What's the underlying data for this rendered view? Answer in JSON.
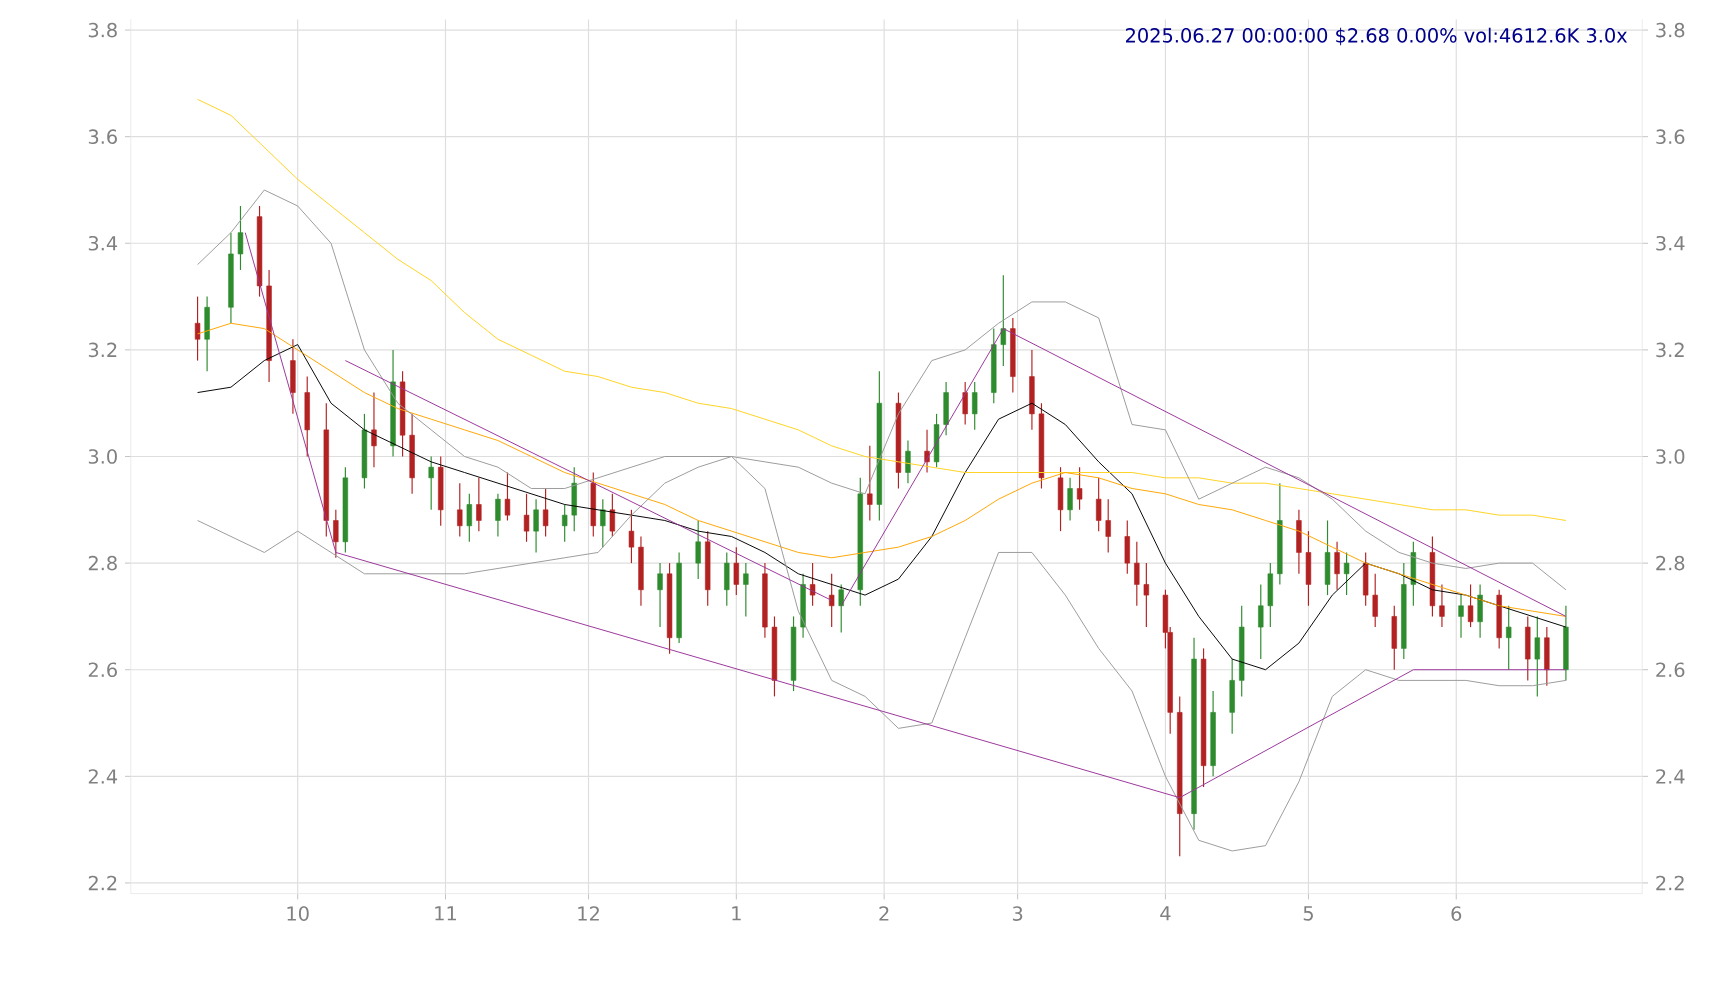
{
  "chart_data": {
    "type": "candlestick",
    "title": "2025.06.27 00:00:00 $2.68 0.00% vol:4612.6K 3.0x",
    "xlim": [
      "2024-08-27",
      "2025-07-10"
    ],
    "ylim": [
      2.18,
      3.82
    ],
    "y2lim": [
      2.18,
      3.82
    ],
    "xticks": [
      {
        "value": "2024-10-01",
        "label": "10"
      },
      {
        "value": "2024-11-01",
        "label": "11"
      },
      {
        "value": "2024-12-01",
        "label": "12"
      },
      {
        "value": "2025-01-01",
        "label": "1"
      },
      {
        "value": "2025-02-01",
        "label": "2"
      },
      {
        "value": "2025-03-01",
        "label": "3"
      },
      {
        "value": "2025-04-01",
        "label": "4"
      },
      {
        "value": "2025-05-01",
        "label": "5"
      },
      {
        "value": "2025-06-01",
        "label": "6"
      }
    ],
    "yticks": [
      2.2,
      2.4,
      2.6,
      2.8,
      {
        "value": 3.0,
        "label": "3.0"
      },
      3.2,
      3.4,
      3.6,
      3.8
    ],
    "y2ticks": [
      2.2,
      2.4,
      2.6,
      2.8,
      {
        "value": 3.0,
        "label": "3.0"
      },
      3.2,
      3.4,
      3.6,
      3.8
    ],
    "grid": true,
    "series": [
      {
        "color": "#2e8b2e",
        "x": [
          "2024-09-12",
          "2024-09-17",
          "2024-09-19",
          "2024-10-11",
          "2024-10-15",
          "2024-10-21",
          "2024-10-29",
          "2024-11-06",
          "2024-11-12",
          "2024-11-20",
          "2024-11-26",
          "2024-11-28",
          "2024-12-04",
          "2024-12-16",
          "2024-12-20",
          "2024-12-24",
          "2024-12-30",
          "2025-01-03",
          "2025-01-13",
          "2025-01-15",
          "2025-01-23",
          "2025-01-27",
          "2025-01-31",
          "2025-02-06",
          "2025-02-12",
          "2025-02-14",
          "2025-02-20",
          "2025-02-24",
          "2025-02-26",
          "2025-03-12",
          "2025-04-07",
          "2025-04-11",
          "2025-04-15",
          "2025-04-17",
          "2025-04-21",
          "2025-04-23",
          "2025-04-25",
          "2025-05-05",
          "2025-05-09",
          "2025-05-21",
          "2025-05-23",
          "2025-06-02",
          "2025-06-06",
          "2025-06-12",
          "2025-06-18",
          "2025-06-24"
        ],
        "ohlc": [
          [
            3.22,
            3.3,
            3.16,
            3.28
          ],
          [
            3.28,
            3.42,
            3.25,
            3.38
          ],
          [
            3.38,
            3.47,
            3.35,
            3.42
          ],
          [
            2.84,
            2.98,
            2.82,
            2.96
          ],
          [
            2.96,
            3.08,
            2.94,
            3.05
          ],
          [
            3.02,
            3.2,
            3.0,
            3.14
          ],
          [
            2.96,
            3.0,
            2.9,
            2.98
          ],
          [
            2.87,
            2.93,
            2.84,
            2.91
          ],
          [
            2.88,
            2.93,
            2.85,
            2.92
          ],
          [
            2.86,
            2.92,
            2.82,
            2.9
          ],
          [
            2.87,
            2.91,
            2.84,
            2.89
          ],
          [
            2.89,
            2.98,
            2.86,
            2.95
          ],
          [
            2.87,
            2.92,
            2.83,
            2.9
          ],
          [
            2.75,
            2.8,
            2.68,
            2.78
          ],
          [
            2.66,
            2.82,
            2.65,
            2.8
          ],
          [
            2.8,
            2.88,
            2.77,
            2.84
          ],
          [
            2.75,
            2.82,
            2.72,
            2.8
          ],
          [
            2.76,
            2.8,
            2.7,
            2.78
          ],
          [
            2.58,
            2.7,
            2.56,
            2.68
          ],
          [
            2.68,
            2.78,
            2.66,
            2.76
          ],
          [
            2.72,
            2.76,
            2.67,
            2.75
          ],
          [
            2.75,
            2.96,
            2.72,
            2.93
          ],
          [
            2.91,
            3.16,
            2.88,
            3.1
          ],
          [
            2.97,
            3.03,
            2.95,
            3.01
          ],
          [
            2.99,
            3.08,
            2.98,
            3.06
          ],
          [
            3.06,
            3.14,
            3.04,
            3.12
          ],
          [
            3.08,
            3.14,
            3.05,
            3.12
          ],
          [
            3.12,
            3.24,
            3.1,
            3.21
          ],
          [
            3.21,
            3.34,
            3.17,
            3.24
          ],
          [
            2.9,
            2.96,
            2.88,
            2.94
          ],
          [
            2.33,
            2.66,
            2.3,
            2.62
          ],
          [
            2.42,
            2.56,
            2.4,
            2.52
          ],
          [
            2.52,
            2.62,
            2.48,
            2.58
          ],
          [
            2.58,
            2.72,
            2.55,
            2.68
          ],
          [
            2.68,
            2.76,
            2.62,
            2.72
          ],
          [
            2.72,
            2.8,
            2.68,
            2.78
          ],
          [
            2.78,
            2.95,
            2.76,
            2.88
          ],
          [
            2.76,
            2.88,
            2.74,
            2.82
          ],
          [
            2.78,
            2.82,
            2.74,
            2.8
          ],
          [
            2.64,
            2.8,
            2.62,
            2.76
          ],
          [
            2.76,
            2.84,
            2.72,
            2.82
          ],
          [
            2.7,
            2.74,
            2.66,
            2.72
          ],
          [
            2.69,
            2.76,
            2.66,
            2.74
          ],
          [
            2.66,
            2.72,
            2.6,
            2.68
          ],
          [
            2.62,
            2.7,
            2.55,
            2.66
          ],
          [
            2.6,
            2.72,
            2.58,
            2.68
          ]
        ]
      },
      {
        "color": "#b22222",
        "x": [
          "2024-09-10",
          "2024-09-23",
          "2024-09-25",
          "2024-09-30",
          "2024-10-03",
          "2024-10-07",
          "2024-10-09",
          "2024-10-17",
          "2024-10-23",
          "2024-10-25",
          "2024-10-31",
          "2024-11-04",
          "2024-11-08",
          "2024-11-14",
          "2024-11-18",
          "2024-11-22",
          "2024-12-02",
          "2024-12-06",
          "2024-12-10",
          "2024-12-12",
          "2024-12-18",
          "2024-12-26",
          "2025-01-01",
          "2025-01-07",
          "2025-01-09",
          "2025-01-17",
          "2025-01-21",
          "2025-01-29",
          "2025-02-04",
          "2025-02-10",
          "2025-02-18",
          "2025-02-28",
          "2025-03-04",
          "2025-03-06",
          "2025-03-10",
          "2025-03-14",
          "2025-03-18",
          "2025-03-20",
          "2025-03-24",
          "2025-03-26",
          "2025-03-28",
          "2025-04-01",
          "2025-04-02",
          "2025-04-04",
          "2025-04-09",
          "2025-04-29",
          "2025-05-01",
          "2025-05-07",
          "2025-05-13",
          "2025-05-15",
          "2025-05-19",
          "2025-05-27",
          "2025-05-29",
          "2025-06-04",
          "2025-06-10",
          "2025-06-16",
          "2025-06-20"
        ],
        "ohlc": [
          [
            3.25,
            3.3,
            3.18,
            3.22
          ],
          [
            3.45,
            3.47,
            3.3,
            3.32
          ],
          [
            3.32,
            3.35,
            3.14,
            3.18
          ],
          [
            3.18,
            3.22,
            3.08,
            3.12
          ],
          [
            3.12,
            3.15,
            3.0,
            3.05
          ],
          [
            3.05,
            3.1,
            2.85,
            2.88
          ],
          [
            2.88,
            2.9,
            2.81,
            2.84
          ],
          [
            3.05,
            3.12,
            2.98,
            3.02
          ],
          [
            3.14,
            3.16,
            3.0,
            3.04
          ],
          [
            3.04,
            3.08,
            2.93,
            2.96
          ],
          [
            2.98,
            3.0,
            2.87,
            2.9
          ],
          [
            2.9,
            2.95,
            2.85,
            2.87
          ],
          [
            2.91,
            2.96,
            2.86,
            2.88
          ],
          [
            2.92,
            2.97,
            2.88,
            2.89
          ],
          [
            2.89,
            2.93,
            2.84,
            2.86
          ],
          [
            2.9,
            2.94,
            2.85,
            2.87
          ],
          [
            2.95,
            2.97,
            2.85,
            2.87
          ],
          [
            2.9,
            2.93,
            2.85,
            2.86
          ],
          [
            2.86,
            2.9,
            2.8,
            2.83
          ],
          [
            2.83,
            2.85,
            2.72,
            2.75
          ],
          [
            2.78,
            2.8,
            2.63,
            2.66
          ],
          [
            2.84,
            2.86,
            2.72,
            2.75
          ],
          [
            2.8,
            2.83,
            2.74,
            2.76
          ],
          [
            2.78,
            2.8,
            2.66,
            2.68
          ],
          [
            2.68,
            2.7,
            2.55,
            2.58
          ],
          [
            2.76,
            2.8,
            2.72,
            2.74
          ],
          [
            2.74,
            2.78,
            2.68,
            2.72
          ],
          [
            2.93,
            3.02,
            2.88,
            2.91
          ],
          [
            3.1,
            3.12,
            2.94,
            2.97
          ],
          [
            3.01,
            3.05,
            2.97,
            2.99
          ],
          [
            3.12,
            3.14,
            3.06,
            3.08
          ],
          [
            3.24,
            3.26,
            3.12,
            3.15
          ],
          [
            3.15,
            3.2,
            3.05,
            3.08
          ],
          [
            3.08,
            3.1,
            2.94,
            2.96
          ],
          [
            2.96,
            2.98,
            2.86,
            2.9
          ],
          [
            2.94,
            2.98,
            2.9,
            2.92
          ],
          [
            2.92,
            2.96,
            2.86,
            2.88
          ],
          [
            2.88,
            2.92,
            2.82,
            2.85
          ],
          [
            2.85,
            2.88,
            2.78,
            2.8
          ],
          [
            2.8,
            2.84,
            2.72,
            2.76
          ],
          [
            2.76,
            2.8,
            2.68,
            2.74
          ],
          [
            2.74,
            2.75,
            2.64,
            2.67
          ],
          [
            2.67,
            2.68,
            2.48,
            2.52
          ],
          [
            2.52,
            2.55,
            2.25,
            2.33
          ],
          [
            2.62,
            2.64,
            2.38,
            2.42
          ],
          [
            2.88,
            2.9,
            2.78,
            2.82
          ],
          [
            2.82,
            2.86,
            2.72,
            2.76
          ],
          [
            2.82,
            2.84,
            2.75,
            2.78
          ],
          [
            2.8,
            2.82,
            2.72,
            2.74
          ],
          [
            2.74,
            2.78,
            2.68,
            2.7
          ],
          [
            2.7,
            2.72,
            2.6,
            2.64
          ],
          [
            2.82,
            2.85,
            2.7,
            2.72
          ],
          [
            2.72,
            2.76,
            2.68,
            2.7
          ],
          [
            2.72,
            2.76,
            2.68,
            2.69
          ],
          [
            2.74,
            2.75,
            2.64,
            2.66
          ],
          [
            2.68,
            2.7,
            2.58,
            2.62
          ],
          [
            2.66,
            2.68,
            2.57,
            2.6
          ]
        ]
      },
      {
        "type": "line",
        "color": "#000000",
        "values": [
          3.12,
          3.13,
          3.18,
          3.21,
          3.1,
          3.05,
          3.02,
          2.99,
          2.97,
          2.95,
          2.93,
          2.91,
          2.9,
          2.89,
          2.88,
          2.86,
          2.85,
          2.82,
          2.78,
          2.76,
          2.74,
          2.77,
          2.85,
          2.97,
          3.07,
          3.1,
          3.06,
          2.99,
          2.93,
          2.8,
          2.7,
          2.62,
          2.6,
          2.65,
          2.74,
          2.8,
          2.78,
          2.75,
          2.74,
          2.72,
          2.7,
          2.68
        ]
      },
      {
        "type": "line",
        "color": "#ffd21f",
        "values": [
          3.67,
          3.64,
          3.58,
          3.52,
          3.47,
          3.42,
          3.37,
          3.33,
          3.27,
          3.22,
          3.19,
          3.16,
          3.15,
          3.13,
          3.12,
          3.1,
          3.09,
          3.07,
          3.05,
          3.02,
          3.0,
          2.99,
          2.98,
          2.97,
          2.97,
          2.97,
          2.97,
          2.97,
          2.97,
          2.96,
          2.96,
          2.95,
          2.95,
          2.94,
          2.93,
          2.92,
          2.91,
          2.9,
          2.9,
          2.89,
          2.89,
          2.88
        ]
      },
      {
        "type": "line",
        "color": "#ffa500",
        "values": [
          3.23,
          3.25,
          3.24,
          3.2,
          3.16,
          3.12,
          3.09,
          3.07,
          3.05,
          3.03,
          3.0,
          2.97,
          2.95,
          2.93,
          2.91,
          2.88,
          2.86,
          2.84,
          2.82,
          2.81,
          2.82,
          2.83,
          2.85,
          2.88,
          2.92,
          2.95,
          2.97,
          2.96,
          2.94,
          2.93,
          2.91,
          2.9,
          2.88,
          2.86,
          2.83,
          2.8,
          2.78,
          2.76,
          2.74,
          2.72,
          2.71,
          2.7
        ]
      },
      {
        "type": "line",
        "color": "#999999",
        "values": [
          3.36,
          3.42,
          3.5,
          3.47,
          3.4,
          3.2,
          3.1,
          3.05,
          3.0,
          2.98,
          2.94,
          2.94,
          2.96,
          2.98,
          3.0,
          3.0,
          3.0,
          2.99,
          2.98,
          2.95,
          2.93,
          3.08,
          3.18,
          3.2,
          3.25,
          3.29,
          3.29,
          3.26,
          3.06,
          3.05,
          2.92,
          2.95,
          2.98,
          2.96,
          2.92,
          2.86,
          2.82,
          2.8,
          2.79,
          2.8,
          2.8,
          2.75
        ]
      },
      {
        "type": "line",
        "color": "#999999",
        "values": [
          2.88,
          2.85,
          2.82,
          2.86,
          2.82,
          2.78,
          2.78,
          2.78,
          2.78,
          2.79,
          2.8,
          2.81,
          2.82,
          2.89,
          2.95,
          2.98,
          3.0,
          2.94,
          2.71,
          2.58,
          2.55,
          2.49,
          2.5,
          2.66,
          2.82,
          2.82,
          2.74,
          2.64,
          2.56,
          2.4,
          2.28,
          2.26,
          2.27,
          2.39,
          2.55,
          2.6,
          2.58,
          2.58,
          2.58,
          2.57,
          2.57,
          2.58
        ]
      },
      {
        "type": "line",
        "color": "#993399",
        "x": [
          "2024-09-20",
          "2024-10-09"
        ],
        "values": [
          3.42,
          2.82
        ]
      },
      {
        "type": "line",
        "color": "#993399",
        "x": [
          "2024-10-09",
          "2025-04-04"
        ],
        "values": [
          2.82,
          2.36
        ]
      },
      {
        "type": "line",
        "color": "#993399",
        "x": [
          "2024-10-11",
          "2025-01-21"
        ],
        "values": [
          3.18,
          2.73
        ]
      },
      {
        "type": "line",
        "color": "#993399",
        "x": [
          "2025-01-23",
          "2025-02-26"
        ],
        "values": [
          2.72,
          3.24
        ]
      },
      {
        "type": "line",
        "color": "#993399",
        "x": [
          "2025-02-26",
          "2025-06-24"
        ],
        "values": [
          3.24,
          2.7
        ]
      },
      {
        "type": "line",
        "color": "#993399",
        "x": [
          "2025-04-04",
          "2025-05-23",
          "2025-06-24"
        ],
        "values": [
          2.36,
          2.6,
          2.6
        ]
      }
    ],
    "x": [
      "2024-09-10",
      "2024-09-17",
      "2024-09-24",
      "2024-10-01",
      "2024-10-08",
      "2024-10-15",
      "2024-10-22",
      "2024-10-29",
      "2024-11-05",
      "2024-11-12",
      "2024-11-19",
      "2024-11-26",
      "2024-12-03",
      "2024-12-10",
      "2024-12-17",
      "2024-12-24",
      "2024-12-31",
      "2025-01-07",
      "2025-01-14",
      "2025-01-21",
      "2025-01-28",
      "2025-02-04",
      "2025-02-11",
      "2025-02-18",
      "2025-02-25",
      "2025-03-04",
      "2025-03-11",
      "2025-03-18",
      "2025-03-25",
      "2025-04-01",
      "2025-04-08",
      "2025-04-15",
      "2025-04-22",
      "2025-04-29",
      "2025-05-06",
      "2025-05-13",
      "2025-05-20",
      "2025-05-27",
      "2025-06-03",
      "2025-06-10",
      "2025-06-17",
      "2025-06-24"
    ]
  }
}
